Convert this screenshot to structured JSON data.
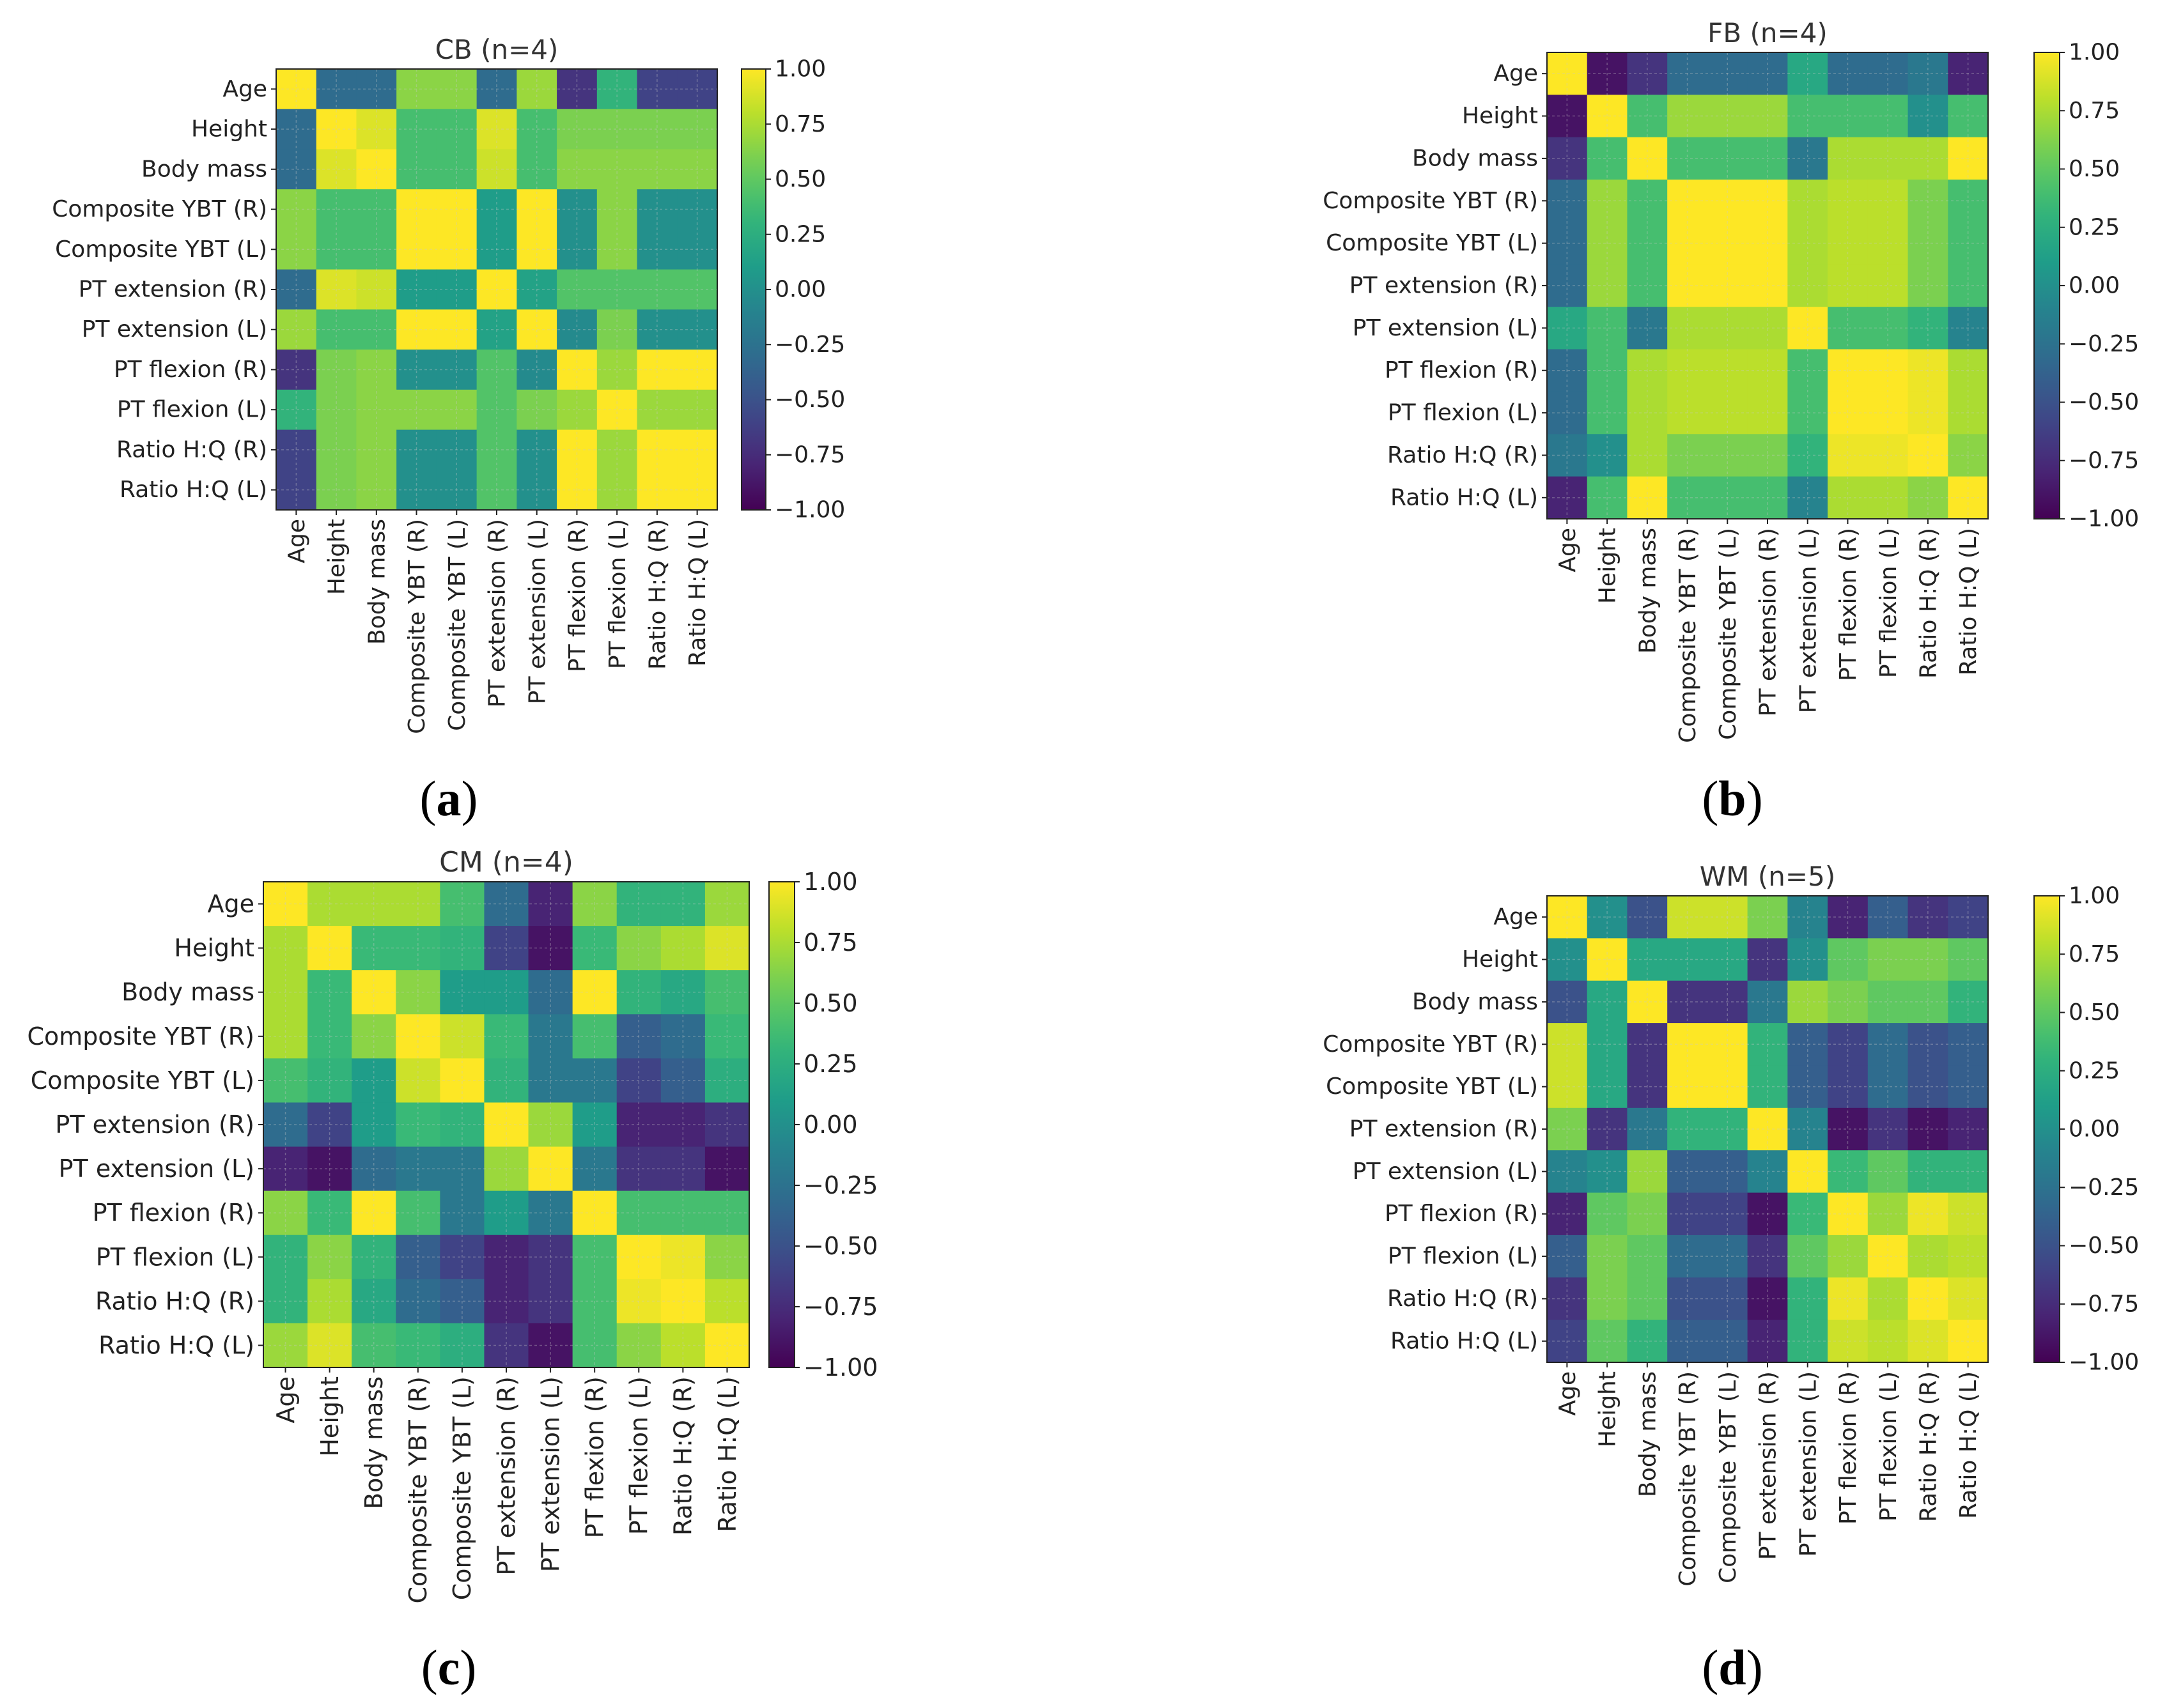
{
  "chart_data": [
    {
      "type": "heatmap",
      "panel_label": "a",
      "title": "CB (n=4)",
      "variables": [
        "Age",
        "Height",
        "Body mass",
        "Composite YBT (R)",
        "Composite YBT (L)",
        "PT extension (R)",
        "PT extension (L)",
        "PT flexion (R)",
        "PT flexion (L)",
        "Ratio H:Q (R)",
        "Ratio H:Q (L)"
      ],
      "colorbar": {
        "min": -1.0,
        "max": 1.0,
        "ticks": [
          "1.00",
          "0.75",
          "0.50",
          "0.25",
          "0.00",
          "−0.25",
          "−0.50",
          "−0.75",
          "−1.00"
        ],
        "colormap": "viridis"
      },
      "matrix": [
        [
          1.0,
          -0.3,
          -0.3,
          0.65,
          0.65,
          -0.3,
          0.7,
          -0.7,
          0.3,
          -0.6,
          -0.6
        ],
        [
          -0.3,
          1.0,
          0.9,
          0.4,
          0.4,
          0.9,
          0.4,
          0.6,
          0.6,
          0.6,
          0.6
        ],
        [
          -0.3,
          0.9,
          1.0,
          0.4,
          0.4,
          0.85,
          0.4,
          0.65,
          0.65,
          0.65,
          0.65
        ],
        [
          0.65,
          0.4,
          0.4,
          1.0,
          1.0,
          0.1,
          1.0,
          0.0,
          0.65,
          0.0,
          0.0
        ],
        [
          0.65,
          0.4,
          0.4,
          1.0,
          1.0,
          0.1,
          1.0,
          0.0,
          0.65,
          0.0,
          0.0
        ],
        [
          -0.3,
          0.9,
          0.85,
          0.1,
          0.1,
          1.0,
          0.15,
          0.45,
          0.45,
          0.45,
          0.45
        ],
        [
          0.7,
          0.4,
          0.4,
          1.0,
          1.0,
          0.15,
          1.0,
          -0.05,
          0.6,
          0.0,
          0.0
        ],
        [
          -0.7,
          0.6,
          0.65,
          0.0,
          0.0,
          0.45,
          -0.05,
          1.0,
          0.7,
          1.0,
          1.0
        ],
        [
          0.3,
          0.6,
          0.65,
          0.65,
          0.65,
          0.45,
          0.6,
          0.7,
          1.0,
          0.7,
          0.7
        ],
        [
          -0.6,
          0.6,
          0.65,
          0.0,
          0.0,
          0.45,
          0.0,
          1.0,
          0.7,
          1.0,
          1.0
        ],
        [
          -0.6,
          0.6,
          0.65,
          0.0,
          0.0,
          0.45,
          0.0,
          1.0,
          0.7,
          1.0,
          1.0
        ]
      ]
    },
    {
      "type": "heatmap",
      "panel_label": "b",
      "title": "FB (n=4)",
      "variables": [
        "Age",
        "Height",
        "Body mass",
        "Composite YBT (R)",
        "Composite YBT (L)",
        "PT extension (R)",
        "PT extension (L)",
        "PT flexion (R)",
        "PT flexion (L)",
        "Ratio H:Q (R)",
        "Ratio H:Q (L)"
      ],
      "colorbar": {
        "min": -1.0,
        "max": 1.0,
        "ticks": [
          "1.00",
          "0.75",
          "0.50",
          "0.25",
          "0.00",
          "−0.25",
          "−0.50",
          "−0.75",
          "−1.00"
        ],
        "colormap": "viridis"
      },
      "matrix": [
        [
          1.0,
          -0.9,
          -0.7,
          -0.3,
          -0.3,
          -0.3,
          0.2,
          -0.3,
          -0.3,
          -0.2,
          -0.8
        ],
        [
          -0.9,
          1.0,
          0.4,
          0.7,
          0.7,
          0.7,
          0.4,
          0.4,
          0.4,
          0.0,
          0.4
        ],
        [
          -0.7,
          0.4,
          1.0,
          0.4,
          0.4,
          0.4,
          -0.2,
          0.75,
          0.75,
          0.75,
          1.0
        ],
        [
          -0.3,
          0.7,
          0.4,
          1.0,
          1.0,
          1.0,
          0.75,
          0.8,
          0.8,
          0.6,
          0.4
        ],
        [
          -0.3,
          0.7,
          0.4,
          1.0,
          1.0,
          1.0,
          0.75,
          0.8,
          0.8,
          0.6,
          0.4
        ],
        [
          -0.3,
          0.7,
          0.4,
          1.0,
          1.0,
          1.0,
          0.75,
          0.8,
          0.8,
          0.6,
          0.4
        ],
        [
          0.2,
          0.4,
          -0.2,
          0.75,
          0.75,
          0.75,
          1.0,
          0.4,
          0.4,
          0.3,
          -0.1
        ],
        [
          -0.3,
          0.4,
          0.75,
          0.8,
          0.8,
          0.8,
          0.4,
          1.0,
          1.0,
          0.95,
          0.75
        ],
        [
          -0.3,
          0.4,
          0.75,
          0.8,
          0.8,
          0.8,
          0.4,
          1.0,
          1.0,
          0.95,
          0.75
        ],
        [
          -0.2,
          0.0,
          0.75,
          0.6,
          0.6,
          0.6,
          0.3,
          0.95,
          0.95,
          1.0,
          0.65
        ],
        [
          -0.8,
          0.4,
          1.0,
          0.4,
          0.4,
          0.4,
          -0.1,
          0.75,
          0.75,
          0.65,
          1.0
        ]
      ]
    },
    {
      "type": "heatmap",
      "panel_label": "c",
      "title": "CM (n=4)",
      "variables": [
        "Age",
        "Height",
        "Body mass",
        "Composite YBT (R)",
        "Composite YBT (L)",
        "PT extension (R)",
        "PT extension (L)",
        "PT flexion (R)",
        "PT flexion (L)",
        "Ratio H:Q (R)",
        "Ratio H:Q (L)"
      ],
      "colorbar": {
        "min": -1.0,
        "max": 1.0,
        "ticks": [
          "1.00",
          "0.75",
          "0.50",
          "0.25",
          "0.00",
          "−0.25",
          "−0.50",
          "−0.75",
          "−1.00"
        ],
        "colormap": "viridis"
      },
      "matrix": [
        [
          1.0,
          0.75,
          0.75,
          0.75,
          0.4,
          -0.3,
          -0.8,
          0.65,
          0.3,
          0.3,
          0.7
        ],
        [
          0.75,
          1.0,
          0.35,
          0.35,
          0.3,
          -0.6,
          -0.9,
          0.35,
          0.65,
          0.75,
          0.9
        ],
        [
          0.75,
          0.35,
          1.0,
          0.65,
          0.1,
          0.1,
          -0.3,
          1.0,
          0.3,
          0.2,
          0.4
        ],
        [
          0.75,
          0.35,
          0.65,
          1.0,
          0.85,
          0.35,
          -0.2,
          0.4,
          -0.4,
          -0.3,
          0.35
        ],
        [
          0.4,
          0.3,
          0.1,
          0.85,
          1.0,
          0.3,
          -0.2,
          -0.2,
          -0.6,
          -0.4,
          0.25
        ],
        [
          -0.3,
          -0.6,
          0.1,
          0.35,
          0.3,
          1.0,
          0.7,
          0.1,
          -0.8,
          -0.8,
          -0.7
        ],
        [
          -0.8,
          -0.9,
          -0.3,
          -0.2,
          -0.2,
          0.7,
          1.0,
          -0.2,
          -0.7,
          -0.7,
          -0.9
        ],
        [
          0.65,
          0.35,
          1.0,
          0.4,
          -0.2,
          0.1,
          -0.2,
          1.0,
          0.4,
          0.4,
          0.4
        ],
        [
          0.3,
          0.65,
          0.3,
          -0.4,
          -0.6,
          -0.8,
          -0.7,
          0.4,
          1.0,
          0.95,
          0.65
        ],
        [
          0.3,
          0.75,
          0.2,
          -0.3,
          -0.4,
          -0.8,
          -0.7,
          0.4,
          0.95,
          1.0,
          0.8
        ],
        [
          0.7,
          0.9,
          0.4,
          0.35,
          0.25,
          -0.7,
          -0.9,
          0.4,
          0.65,
          0.8,
          1.0
        ]
      ]
    },
    {
      "type": "heatmap",
      "panel_label": "d",
      "title": "WM (n=5)",
      "variables": [
        "Age",
        "Height",
        "Body mass",
        "Composite YBT (R)",
        "Composite YBT (L)",
        "PT extension (R)",
        "PT extension (L)",
        "PT flexion (R)",
        "PT flexion (L)",
        "Ratio H:Q (R)",
        "Ratio H:Q (L)"
      ],
      "colorbar": {
        "min": -1.0,
        "max": 1.0,
        "ticks": [
          "1.00",
          "0.75",
          "0.50",
          "0.25",
          "0.00",
          "−0.25",
          "−0.50",
          "−0.75",
          "−1.00"
        ],
        "colormap": "viridis"
      },
      "matrix": [
        [
          1.0,
          0.0,
          -0.5,
          0.85,
          0.85,
          0.6,
          -0.1,
          -0.8,
          -0.4,
          -0.7,
          -0.6
        ],
        [
          0.0,
          1.0,
          0.2,
          0.2,
          0.2,
          -0.7,
          0.0,
          0.5,
          0.6,
          0.6,
          0.5
        ],
        [
          -0.5,
          0.2,
          1.0,
          -0.7,
          -0.7,
          -0.2,
          0.7,
          0.6,
          0.5,
          0.5,
          0.3
        ],
        [
          0.85,
          0.2,
          -0.7,
          1.0,
          1.0,
          0.3,
          -0.4,
          -0.6,
          -0.3,
          -0.5,
          -0.4
        ],
        [
          0.85,
          0.2,
          -0.7,
          1.0,
          1.0,
          0.3,
          -0.4,
          -0.6,
          -0.3,
          -0.5,
          -0.4
        ],
        [
          0.6,
          -0.7,
          -0.2,
          0.3,
          0.3,
          1.0,
          -0.1,
          -0.9,
          -0.7,
          -0.9,
          -0.8
        ],
        [
          -0.1,
          0.0,
          0.7,
          -0.4,
          -0.4,
          -0.1,
          1.0,
          0.35,
          0.5,
          0.3,
          0.3
        ],
        [
          -0.8,
          0.5,
          0.6,
          -0.6,
          -0.6,
          -0.9,
          0.35,
          1.0,
          0.7,
          0.95,
          0.85
        ],
        [
          -0.4,
          0.6,
          0.5,
          -0.3,
          -0.3,
          -0.7,
          0.5,
          0.7,
          1.0,
          0.75,
          0.8
        ],
        [
          -0.7,
          0.6,
          0.5,
          -0.5,
          -0.5,
          -0.9,
          0.3,
          0.95,
          0.75,
          1.0,
          0.9
        ],
        [
          -0.6,
          0.5,
          0.3,
          -0.4,
          -0.4,
          -0.8,
          0.3,
          0.85,
          0.8,
          0.9,
          1.0
        ]
      ]
    }
  ],
  "subfigure_labels": [
    "a",
    "b",
    "c",
    "d"
  ]
}
